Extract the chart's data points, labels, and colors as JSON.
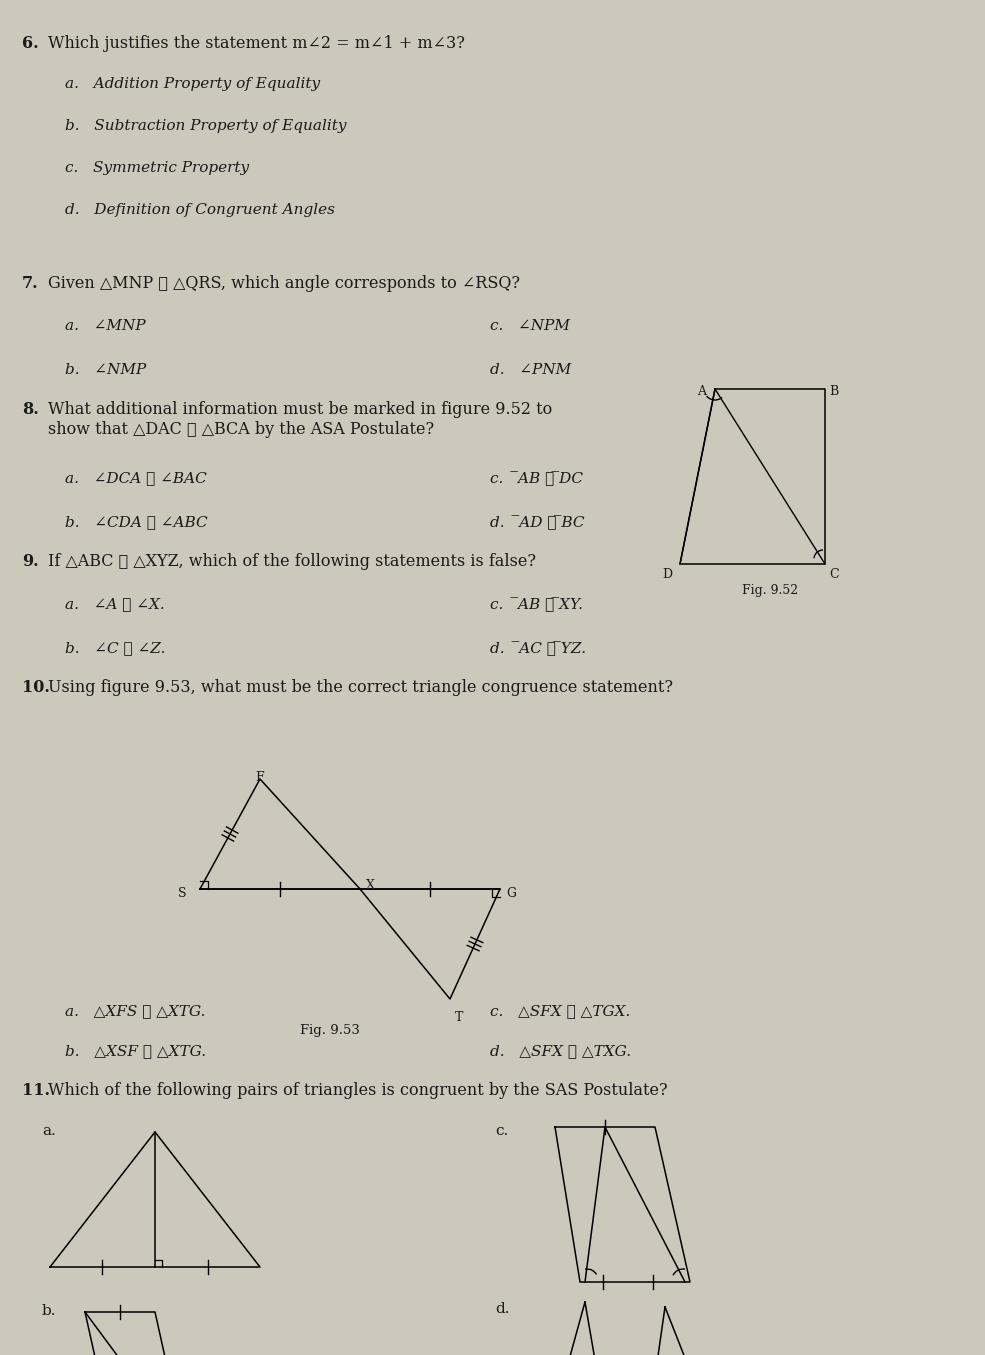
{
  "bg_color": "#cdc8bc",
  "text_color": "#1a1a1a",
  "q6_num": "6.",
  "q6_question": "Which justifies the statement m∠2 = m∠1 + m∠3?",
  "q6_choices": [
    "a.   Addition Property of Equality",
    "b.   Subtraction Property of Equality",
    "c.   Symmetric Property",
    "d.   Definition of Congruent Angles"
  ],
  "q7_num": "7.",
  "q7_question": "Given △MNP ≅ △QRS, which angle corresponds to ∠RSQ?",
  "q7_left": [
    "a.   ∠MNP",
    "b.   ∠NMP"
  ],
  "q7_right": [
    "c.   ∠NPM",
    "d.   ∠PNM"
  ],
  "q8_num": "8.",
  "q8_question": "What additional information must be marked in figure 9.52 to\nshow that △DAC ≅ △BCA by the ASA Postulate?",
  "q8_left": [
    "a.   ∠DCA ≅ ∠BAC",
    "b.   ∠CDA ≅ ∠ABC"
  ],
  "q8_right": [
    "c.   ̅AB ≅ ̅DC",
    "d.   ̅AD ≅ ̅BC"
  ],
  "q9_num": "9.",
  "q9_question": "If △ABC ≅ △XYZ, which of the following statements is false?",
  "q9_left": [
    "a.   ∠A ≅ ∠X.",
    "b.   ∠C ≅ ∠Z."
  ],
  "q9_right": [
    "c.   ̅AB ≅ ̅XY.",
    "d.   ̅AC ≅ ̅YZ."
  ],
  "q10_num": "10.",
  "q10_question": "Using figure 9.53, what must be the correct triangle congruence statement?",
  "q10_left": [
    "a.   △XFS ≅ △XTG.",
    "b.   △XSF ≅ △XTG."
  ],
  "q10_right": [
    "c.   △SFX ≅ △TGX.",
    "d.   △SFX ≅ △TXG."
  ],
  "q11_num": "11.",
  "q11_question": "Which of the following pairs of triangles is congruent by the SAS Postulate?",
  "fig952_label": "Fig. 9.52",
  "fig953_label": "Fig. 9.53"
}
